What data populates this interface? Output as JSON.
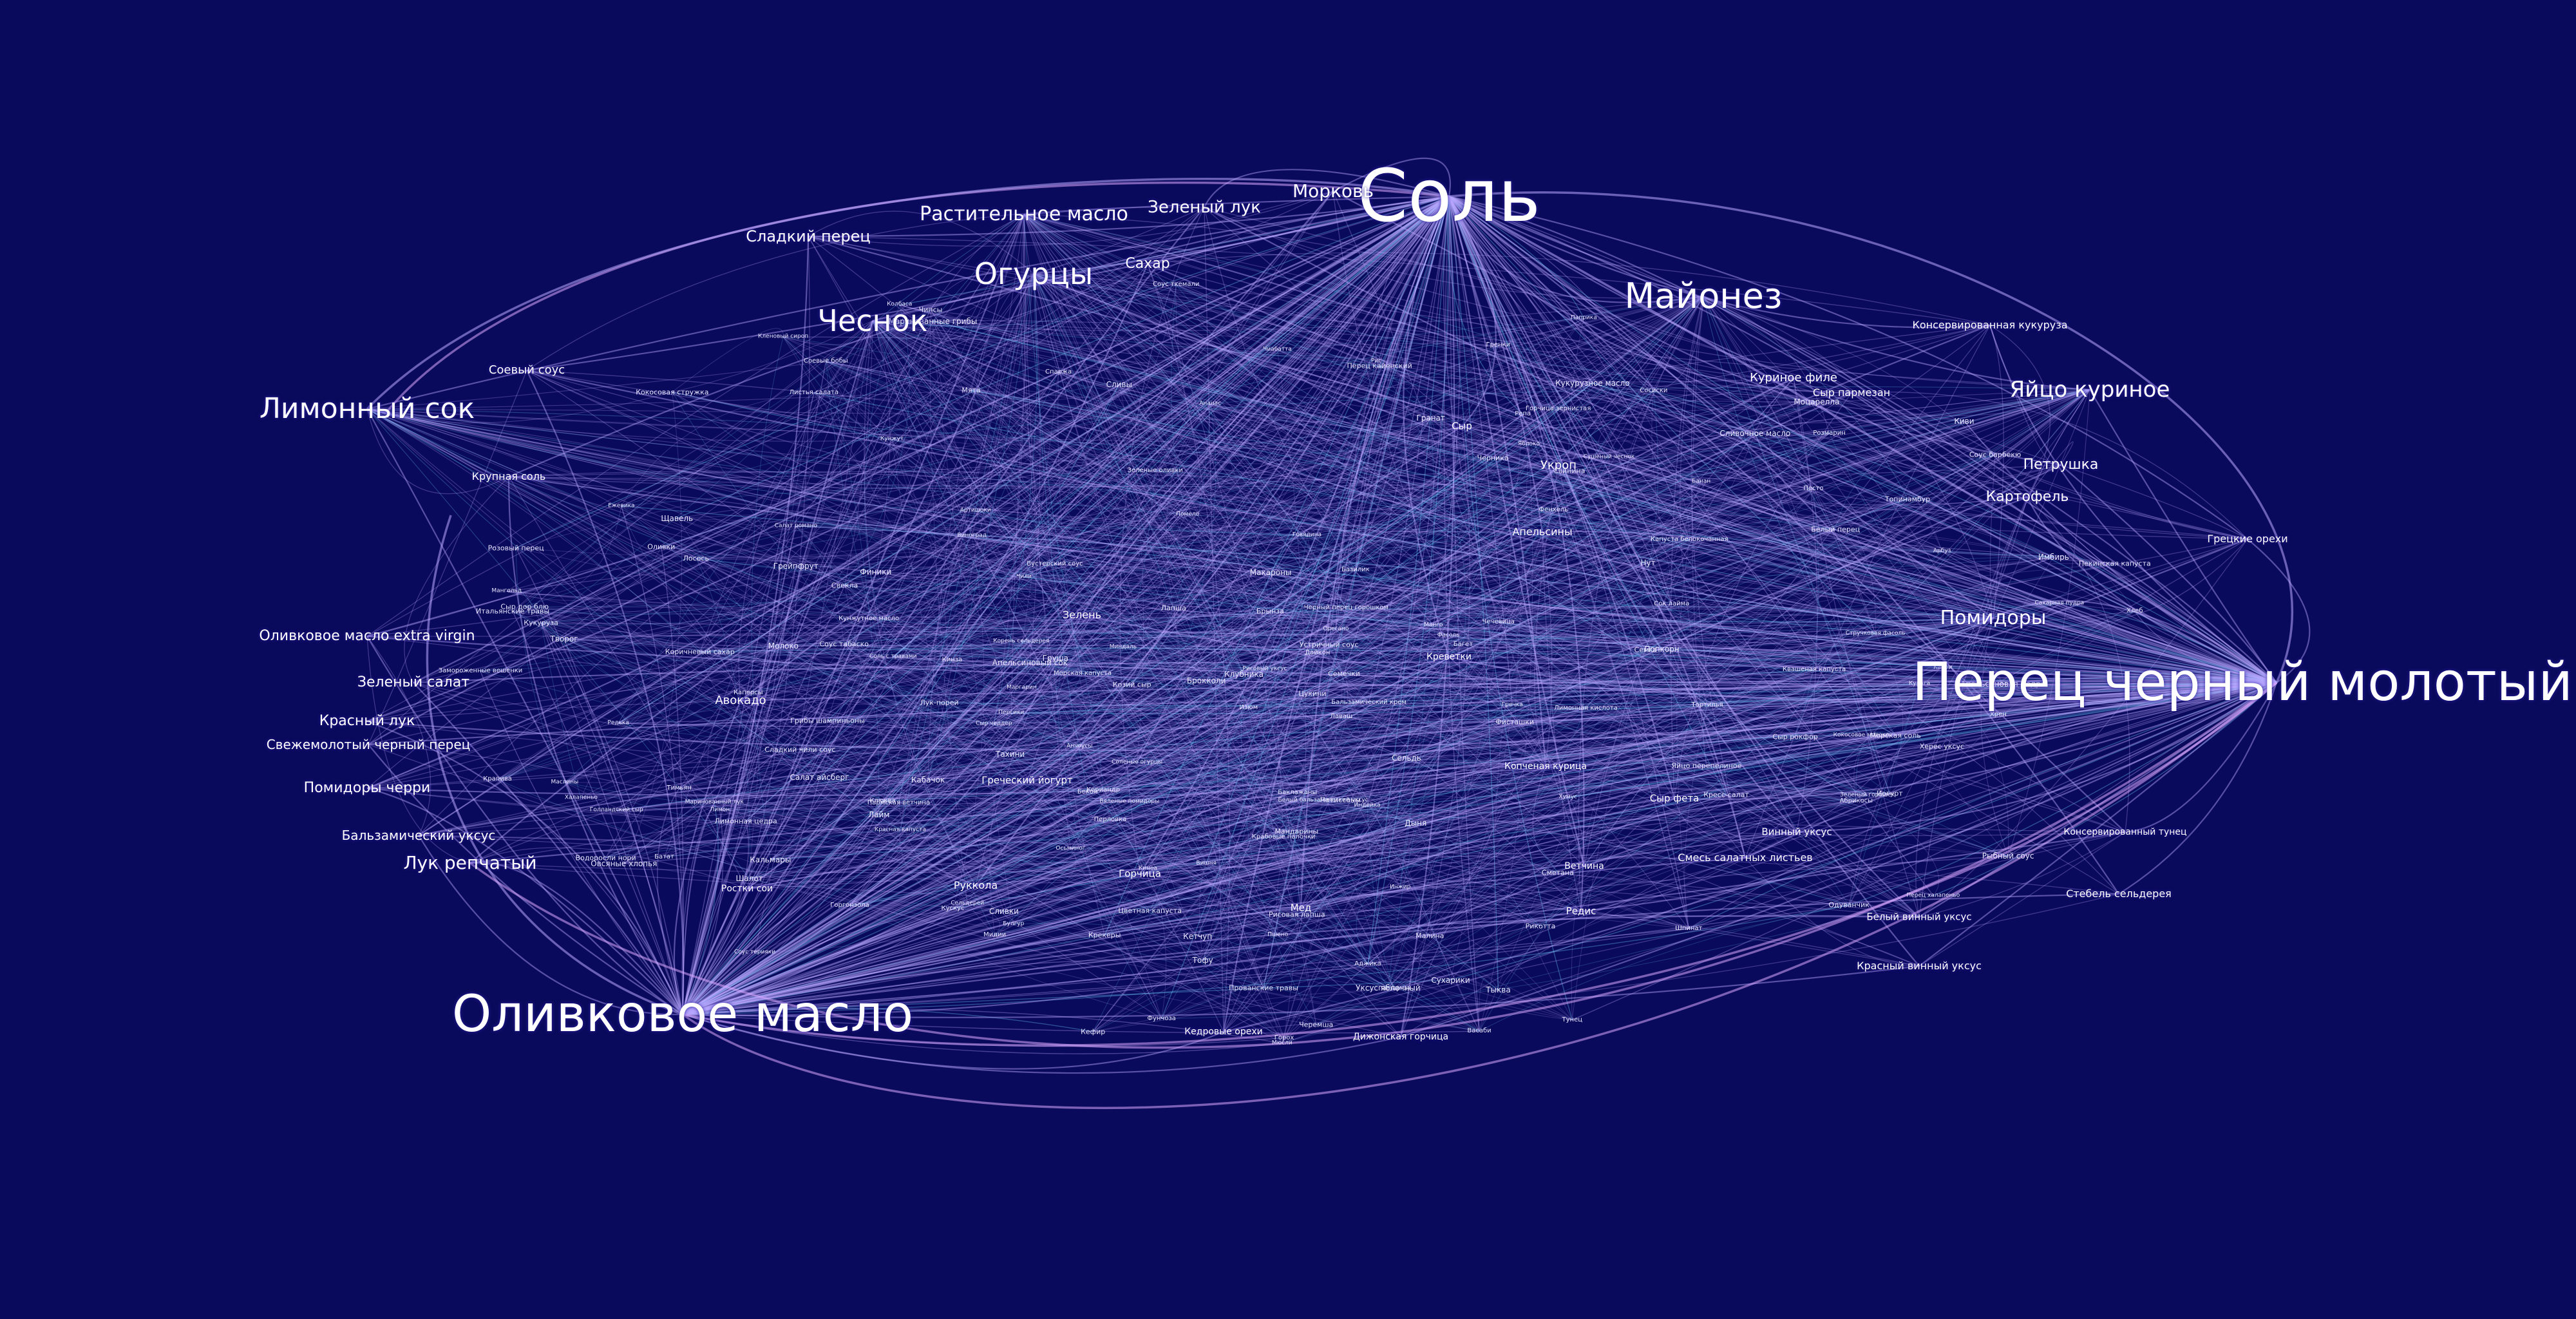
{
  "graph": {
    "background": "#0a0a5c",
    "edge_color": "#b9a7ff",
    "edge_color_alt": "#6fd0ff",
    "node_color": "#ffffff",
    "major_nodes": [
      {
        "label": "Соль"
      },
      {
        "label": "Перец черный молотый"
      },
      {
        "label": "Оливковое масло"
      },
      {
        "label": "Майонез"
      },
      {
        "label": "Лимонный сок"
      },
      {
        "label": "Чеснок"
      },
      {
        "label": "Огурцы"
      },
      {
        "label": "Растительное масло"
      },
      {
        "label": "Морковь"
      },
      {
        "label": "Зеленый лук"
      },
      {
        "label": "Яйцо куриное"
      },
      {
        "label": "Помидоры"
      },
      {
        "label": "Сладкий перец"
      },
      {
        "label": "Сахар"
      },
      {
        "label": "Лук репчатый"
      },
      {
        "label": "Оливковое масло extra virgin"
      },
      {
        "label": "Зеленый салат"
      },
      {
        "label": "Красный лук"
      },
      {
        "label": "Свежемолотый черный перец"
      },
      {
        "label": "Помидоры черри"
      },
      {
        "label": "Бальзамический уксус"
      },
      {
        "label": "Петрушка"
      },
      {
        "label": "Картофель"
      },
      {
        "label": "Куриное филе"
      },
      {
        "label": "Сыр пармезан"
      },
      {
        "label": "Консервированная кукуруза"
      },
      {
        "label": "Соевый соус"
      },
      {
        "label": "Авокадо"
      },
      {
        "label": "Руккола"
      },
      {
        "label": "Смесь салатных листьев"
      },
      {
        "label": "Кедровые орехи"
      },
      {
        "label": "Дижонская горчица"
      },
      {
        "label": "Греческий йогурт"
      },
      {
        "label": "Укроп"
      },
      {
        "label": "Апельсины"
      },
      {
        "label": "Грецкие орехи"
      },
      {
        "label": "Сыр фета"
      },
      {
        "label": "Мед"
      },
      {
        "label": "Красный винный уксус"
      },
      {
        "label": "Белый винный уксус"
      },
      {
        "label": "Стебель сельдерея"
      },
      {
        "label": "Винный уксус"
      },
      {
        "label": "Горчица"
      },
      {
        "label": "Консервированный тунец"
      },
      {
        "label": "Креветки"
      },
      {
        "label": "Копченая курица"
      },
      {
        "label": "Ветчина"
      },
      {
        "label": "Крупная соль"
      },
      {
        "label": "Редис"
      },
      {
        "label": "Сыр"
      },
      {
        "label": "Зелень"
      },
      {
        "label": "Ростки сои"
      }
    ],
    "minor_nodes": [
      "Замороженные вешенки",
      "Цветная капуста",
      "Кориандр",
      "Кукурузное масло",
      "Маринованные грибы",
      "Белый бальзамический уксус",
      "Каперсы",
      "Пармская ветчина",
      "Зеленые оливки",
      "Маслины",
      "Вяленые помидоры",
      "Моцарелла",
      "Брынза",
      "Кунжут",
      "Свекла",
      "Капуста белокочанная",
      "Красная капуста",
      "Лимон",
      "Сливки",
      "Сметана",
      "Творог",
      "Крабовые палочки",
      "Кальмары",
      "Фасоль",
      "Нут",
      "Киноа",
      "Булгур",
      "Рис",
      "Макароны",
      "Багет",
      "Сухарики",
      "Грибы шампиньоны",
      "Яблоко",
      "Груша",
      "Виноград",
      "Клубника",
      "Гранат",
      "Манго",
      "Ананас",
      "Изюм",
      "Курага",
      "Миндаль",
      "Фисташки",
      "Семечки",
      "Тыква",
      "Баклажаны",
      "Кабачок",
      "Сельдерей",
      "Шпинат",
      "Базилик",
      "Мята",
      "Тимьян",
      "Орегано",
      "Розмарин",
      "Паприка",
      "Карри",
      "Имбирь",
      "Чили",
      "Халапеньо",
      "Перец кайенский",
      "Лайм",
      "Апельсиновый сок",
      "Сок лайма",
      "Кетчуп",
      "Соус табаско",
      "Вустерский соус",
      "Рыбный соус",
      "Кунжутное масло",
      "Тахини",
      "Хумус",
      "Оливки",
      "Анчоусы",
      "Лосось",
      "Семга",
      "Тунец",
      "Говядина",
      "Свинина",
      "Индейка",
      "Бекон",
      "Колбаса",
      "Сосиски",
      "Яйцо перепелиное",
      "Сыр дор блю",
      "Сыр рокфор",
      "Горгонзола",
      "Рикотта",
      "Козий сыр",
      "Сыр чеддер",
      "Голландский сыр",
      "Сельдь",
      "Мидии",
      "Осьминог",
      "Кинза",
      "Салат айсберг",
      "Салат романо",
      "Листья салата",
      "Пекинская капуста",
      "Брокколи",
      "Спаржа",
      "Артишоки",
      "Зеленый горошек",
      "Стручковая фасоль",
      "Кукуруза",
      "Сушеный чеснок",
      "Морская соль",
      "Соль с травами",
      "Черный перец горошком",
      "Белый перец",
      "Розовый перец",
      "Итальянские травы",
      "Прованские травы",
      "Сахарная пудра",
      "Коричневый сахар",
      "Кленовый сироп",
      "Лимонная цедра",
      "Апельсиновая цедра",
      "Дыня",
      "Арбуз",
      "Персики",
      "Абрикосы",
      "Сливы",
      "Вишня",
      "Черника",
      "Малина",
      "Ежевика",
      "Клюква",
      "Финики",
      "Инжир",
      "Киви",
      "Банан",
      "Грейпфрут",
      "Мандарины",
      "Помело",
      "Топинамбур",
      "Батат",
      "Пастернак",
      "Корень сельдерея",
      "Репа",
      "Редька",
      "Дайкон",
      "Лук-порей",
      "Шалот",
      "Черемша",
      "Щавель",
      "Крапива",
      "Одуванчик",
      "Кресс-салат",
      "Мангольд",
      "Фенхель",
      "Цукини",
      "Патиссоны",
      "Перец халапеньо",
      "Маринованный лук",
      "Соленые огурцы",
      "Квашеная капуста",
      "Морская капуста",
      "Водоросли нори",
      "Тофу",
      "Соевые бобы",
      "Чечевица",
      "Горох",
      "Перловка",
      "Гречка",
      "Пшено",
      "Кускус",
      "Лапша",
      "Фунчоза",
      "Рисовая лапша",
      "Лаваш",
      "Тортилья",
      "Гренки",
      "Чиабатта",
      "Хлеб",
      "Крекеры",
      "Чипсы",
      "Попкорн",
      "Мюсли",
      "Овсяные хлопья",
      "Кокосовая стружка",
      "Кокосовое молоко",
      "Йогурт",
      "Кефир",
      "Молоко",
      "Сливочное масло",
      "Маргарин",
      "Лимонная кислота",
      "Уксус яблочный",
      "Рисовый уксус",
      "Херес уксус",
      "Бальзамический крем",
      "Горчица зернистая",
      "Хрен",
      "Васаби",
      "Аджика",
      "Песто",
      "Соус ткемали",
      "Соус терияки",
      "Устричный соус",
      "Сладкий чили соус",
      "Соус барбекю"
    ]
  }
}
